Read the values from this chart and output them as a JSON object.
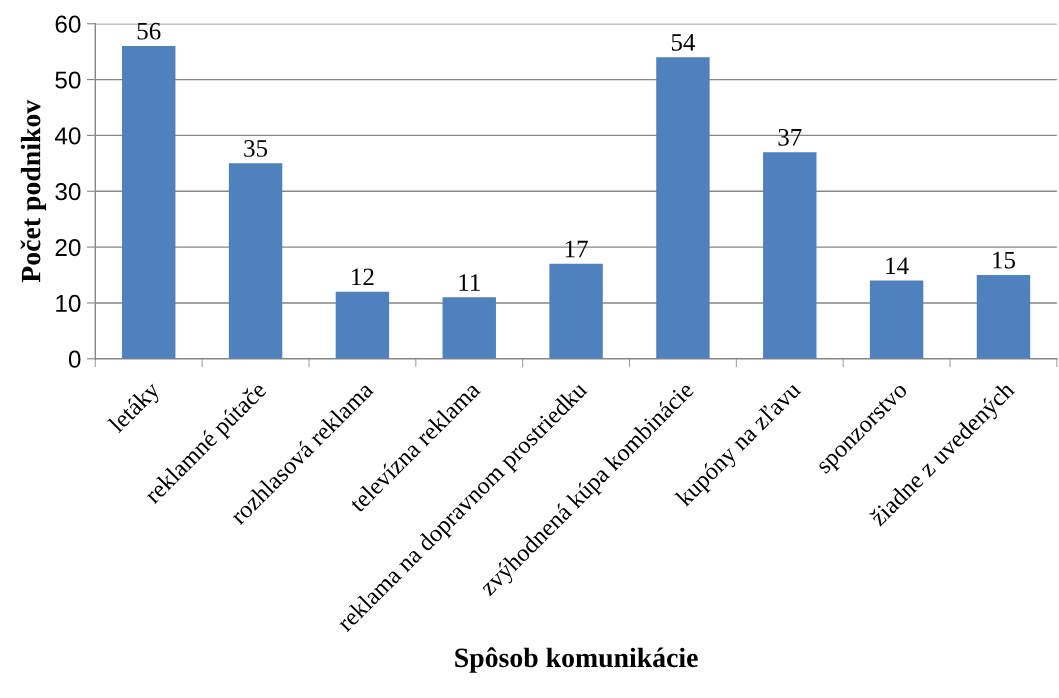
{
  "chart_data": {
    "type": "bar",
    "categories": [
      "letáky",
      "reklamné pútače",
      "rozhlasová reklama",
      "televízna reklama",
      "reklama na dopravnom prostriedku",
      "zvýhodnená kúpa kombinácie",
      "kupóny na zľavu",
      "sponzorstvo",
      "žiadne z uvedených"
    ],
    "values": [
      56,
      35,
      12,
      11,
      17,
      54,
      37,
      14,
      15
    ],
    "color": "#4f81bd",
    "xlabel": "Spôsob komunikácie",
    "ylabel": "Počet podnikov",
    "ylim": [
      0,
      60
    ],
    "yticks": [
      0,
      10,
      20,
      30,
      40,
      50,
      60
    ],
    "grid": "y",
    "data_labels": true,
    "legend": false
  }
}
